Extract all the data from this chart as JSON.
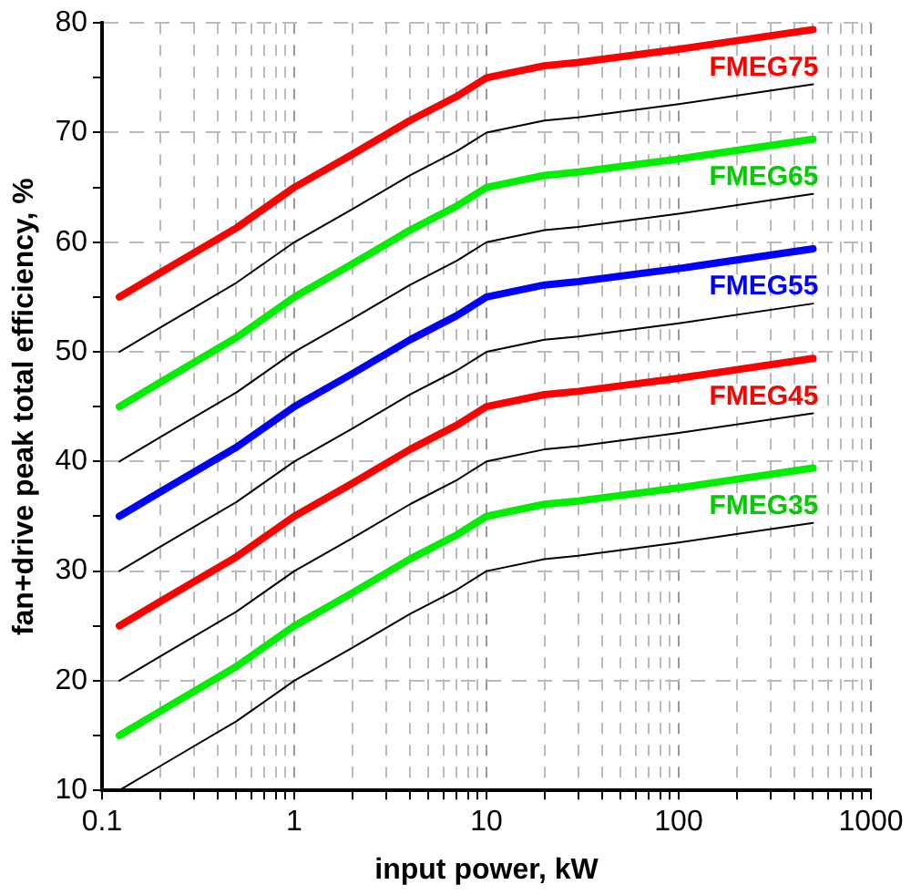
{
  "chart_data": {
    "type": "line",
    "xlabel": "input power, kW",
    "ylabel": "fan+drive peak total efficiency, %",
    "log": "x",
    "grid": true,
    "marker": "none",
    "line_style": "solid",
    "x": [
      0.123,
      0.2,
      0.5,
      1,
      2,
      4,
      7,
      10,
      20,
      30,
      100,
      500
    ],
    "xlim": [
      0.1,
      1000
    ],
    "xticks": [
      0.1,
      {
        "value": 0.2,
        "label": null
      },
      {
        "value": 0.3,
        "label": null
      },
      {
        "value": 0.4,
        "label": null
      },
      {
        "value": 0.5,
        "label": null
      },
      {
        "value": 0.6,
        "label": null
      },
      {
        "value": 0.7,
        "label": null
      },
      {
        "value": 0.8,
        "label": null
      },
      {
        "value": 0.9,
        "label": null
      },
      1,
      {
        "value": 2,
        "label": null
      },
      {
        "value": 3,
        "label": null
      },
      {
        "value": 4,
        "label": null
      },
      {
        "value": 5,
        "label": null
      },
      {
        "value": 6,
        "label": null
      },
      {
        "value": 7,
        "label": null
      },
      {
        "value": 8,
        "label": null
      },
      {
        "value": 9,
        "label": null
      },
      10,
      {
        "value": 20,
        "label": null
      },
      {
        "value": 30,
        "label": null
      },
      {
        "value": 40,
        "label": null
      },
      {
        "value": 50,
        "label": null
      },
      {
        "value": 60,
        "label": null
      },
      {
        "value": 70,
        "label": null
      },
      {
        "value": 80,
        "label": null
      },
      {
        "value": 90,
        "label": null
      },
      100,
      {
        "value": 200,
        "label": null
      },
      {
        "value": 300,
        "label": null
      },
      {
        "value": 400,
        "label": null
      },
      {
        "value": 500,
        "label": null
      },
      {
        "value": 600,
        "label": null
      },
      {
        "value": 700,
        "label": null
      },
      {
        "value": 800,
        "label": null
      },
      {
        "value": 900,
        "label": null
      },
      1000
    ],
    "ylim": [
      10,
      80
    ],
    "yticks": [
      10,
      {
        "value": 15,
        "label": null
      },
      20,
      {
        "value": 25,
        "label": null
      },
      30,
      {
        "value": 35,
        "label": null
      },
      40,
      {
        "value": 45,
        "label": null
      },
      50,
      {
        "value": 55,
        "label": null
      },
      60,
      {
        "value": 65,
        "label": null
      },
      70,
      {
        "value": 75,
        "label": null
      },
      80
    ],
    "series": [
      {
        "name": "FMEG75",
        "color": "#ff0000",
        "values": [
          55,
          57.2,
          61.3,
          65,
          68,
          71.1,
          73.3,
          75,
          76.1,
          76.4,
          77.6,
          79.4
        ]
      },
      {
        "color": "#000000",
        "values": [
          50,
          52.2,
          56.3,
          60,
          63,
          66.1,
          68.3,
          70,
          71.1,
          71.4,
          72.6,
          74.4
        ]
      },
      {
        "name": "FMEG65",
        "color": "#00ee00",
        "values": [
          45,
          47.2,
          51.3,
          55,
          58,
          61.1,
          63.3,
          65,
          66.1,
          66.4,
          67.6,
          69.4
        ]
      },
      {
        "color": "#000000",
        "values": [
          40,
          42.2,
          46.3,
          50,
          53,
          56.1,
          58.3,
          60,
          61.1,
          61.4,
          62.6,
          64.4
        ]
      },
      {
        "name": "FMEG55",
        "color": "#0000ff",
        "values": [
          35,
          37.2,
          41.3,
          45,
          48,
          51.1,
          53.3,
          55,
          56.1,
          56.4,
          57.6,
          59.4
        ]
      },
      {
        "color": "#000000",
        "values": [
          30,
          32.2,
          36.3,
          40,
          43,
          46.1,
          48.3,
          50,
          51.1,
          51.4,
          52.6,
          54.4
        ]
      },
      {
        "name": "FMEG45",
        "color": "#ff0000",
        "values": [
          25,
          27.2,
          31.3,
          35,
          38,
          41.1,
          43.3,
          45,
          46.1,
          46.4,
          47.6,
          49.4
        ]
      },
      {
        "color": "#000000",
        "values": [
          20,
          22.2,
          26.3,
          30,
          33,
          36.1,
          38.3,
          40,
          41.1,
          41.4,
          42.6,
          44.4
        ]
      },
      {
        "name": "FMEG35",
        "color": "#00ee00",
        "values": [
          15,
          17.2,
          21.3,
          25,
          28,
          31.1,
          33.3,
          35,
          36.1,
          36.4,
          37.6,
          39.4
        ]
      },
      {
        "color": "#000000",
        "values": [
          10,
          12.2,
          16.3,
          20,
          23,
          26.1,
          28.3,
          30,
          31.1,
          31.4,
          32.6,
          34.4
        ]
      }
    ]
  }
}
